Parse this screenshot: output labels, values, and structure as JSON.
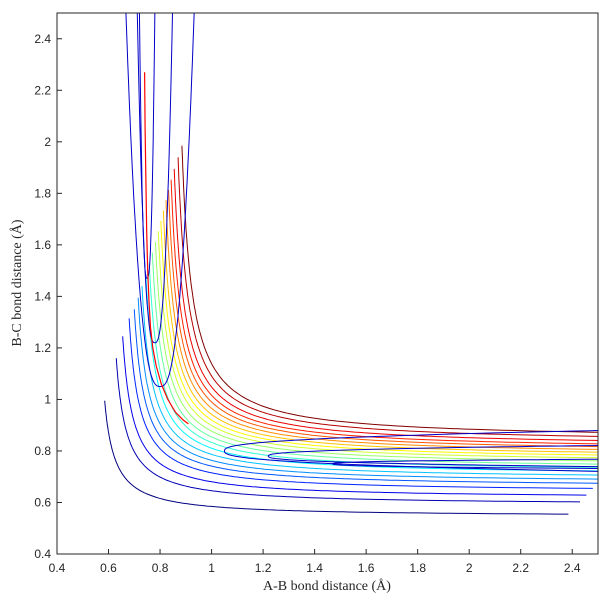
{
  "chart_data": {
    "type": "contour",
    "xlabel": "A-B bond distance (Å)",
    "ylabel": "B-C bond distance (Å)",
    "xlim": [
      0.4,
      2.5
    ],
    "ylim": [
      0.4,
      2.5
    ],
    "x_ticks": [
      "0.4",
      "0.6",
      "0.8",
      "1",
      "1.2",
      "1.4",
      "1.6",
      "1.8",
      "2",
      "2.2",
      "2.4"
    ],
    "y_ticks": [
      "0.4",
      "0.6",
      "0.8",
      "1",
      "1.2",
      "1.4",
      "1.6",
      "1.8",
      "2",
      "2.2",
      "2.4"
    ],
    "grid": false,
    "colormap": "jet",
    "contour_count": 20,
    "colors": {
      "low": "#00008f",
      "high": "#800000",
      "path": "#ff0000",
      "axis": "#262626"
    },
    "contours": [
      {
        "level": 1,
        "wall_x": 0.745,
        "wall_y": 0.745,
        "b": 0.03
      },
      {
        "level": 2,
        "wall_x": 0.79,
        "wall_y": 0.79,
        "b": 0.038
      },
      {
        "level": 3,
        "wall_x": 0.815,
        "wall_y": 0.815,
        "b": 0.042
      },
      {
        "level": 4,
        "wall_x": 0.84,
        "wall_y": 0.84,
        "b": 0.045
      },
      {
        "level": 5,
        "wall_x": 0.86,
        "wall_y": 0.86,
        "b": 0.046
      },
      {
        "level": 6,
        "wall_x": 0.875,
        "wall_y": 0.875,
        "b": 0.048
      },
      {
        "level": 7,
        "wall_x": 0.89,
        "wall_y": 0.89,
        "b": 0.05
      },
      {
        "level": 8,
        "wall_x": 0.905,
        "wall_y": 0.905,
        "b": 0.052
      },
      {
        "level": 9,
        "wall_x": 0.918,
        "wall_y": 0.918,
        "b": 0.054
      },
      {
        "level": 10,
        "wall_x": 0.93,
        "wall_y": 0.93,
        "b": 0.056
      },
      {
        "level": 11,
        "wall_x": 0.942,
        "wall_y": 0.942,
        "b": 0.058
      },
      {
        "level": 12,
        "wall_x": 0.953,
        "wall_y": 0.953,
        "b": 0.06
      },
      {
        "level": 13,
        "wall_x": 0.963,
        "wall_y": 0.963,
        "b": 0.062
      },
      {
        "level": 14,
        "wall_x": 0.973,
        "wall_y": 0.973,
        "b": 0.064
      },
      {
        "level": 15,
        "wall_x": 0.983,
        "wall_y": 0.983,
        "b": 0.066
      },
      {
        "level": 16,
        "wall_x": 0.993,
        "wall_y": 0.993,
        "b": 0.068
      },
      {
        "level": 17,
        "wall_x": 1.003,
        "wall_y": 1.003,
        "b": 0.07
      },
      {
        "level": 18,
        "wall_x": 1.015,
        "wall_y": 1.015,
        "b": 0.072
      },
      {
        "level": 19,
        "wall_x": 1.03,
        "wall_y": 1.03,
        "b": 0.074
      },
      {
        "level": 20,
        "wall_x": 1.045,
        "wall_y": 1.045,
        "b": 0.076
      }
    ],
    "valley_x": [
      {
        "tip_x": 0.75,
        "tip_y": 1.47,
        "half_width": 0.045
      },
      {
        "tip_x": 0.78,
        "tip_y": 1.22,
        "half_width": 0.095
      },
      {
        "tip_x": 0.8,
        "tip_y": 1.05,
        "half_width": 0.175
      }
    ],
    "valley_y": [
      {
        "tip_x": 1.47,
        "tip_y": 0.75,
        "half_width": 0.045
      },
      {
        "tip_x": 1.22,
        "tip_y": 0.78,
        "half_width": 0.095
      },
      {
        "tip_x": 1.05,
        "tip_y": 0.8,
        "half_width": 0.175
      }
    ],
    "reaction_path": {
      "x": [
        0.74,
        0.742,
        0.745,
        0.748,
        0.752,
        0.757,
        0.763,
        0.772,
        0.785,
        0.805,
        0.83,
        0.86,
        0.89,
        0.91
      ],
      "y": [
        2.27,
        2.05,
        1.85,
        1.65,
        1.5,
        1.38,
        1.28,
        1.2,
        1.13,
        1.06,
        1.0,
        0.95,
        0.92,
        0.905
      ]
    }
  }
}
